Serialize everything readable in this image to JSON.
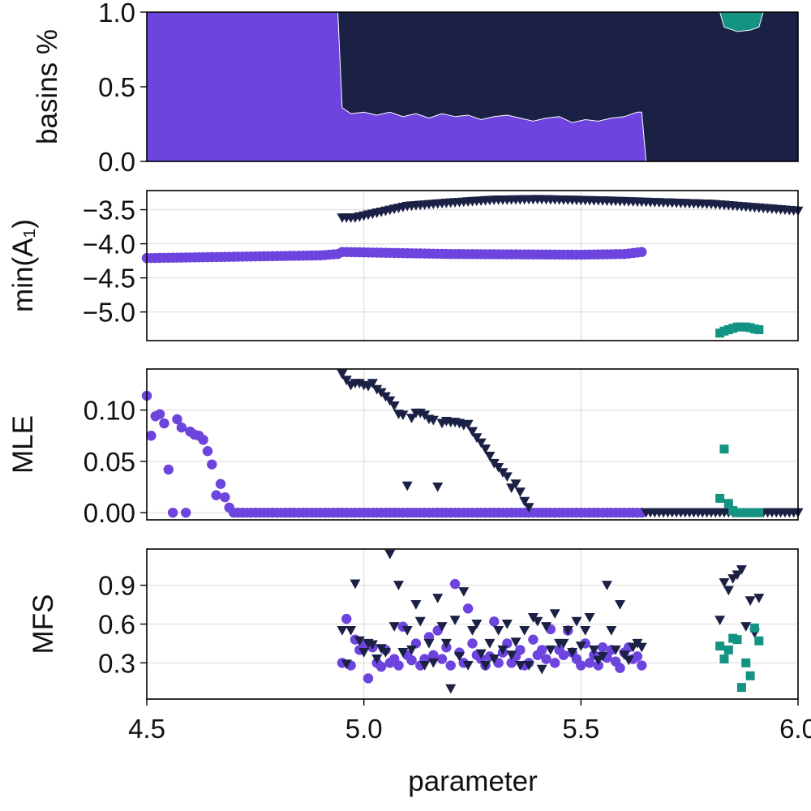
{
  "figure": {
    "xlabel": "parameter",
    "xlim": [
      4.5,
      6.0
    ],
    "xticks": [
      4.5,
      5.0,
      5.5,
      6.0
    ],
    "xtick_labels": [
      "4.5",
      "5.0",
      "5.5",
      "6.0"
    ]
  },
  "colors": {
    "attractor_1": "#6D44DD",
    "attractor_2": "#1B2045",
    "attractor_3": "#139382"
  },
  "chart_data": [
    {
      "type": "area",
      "ylabel": "basins %",
      "ylim": [
        0,
        1
      ],
      "yticks": [
        0.0,
        0.5,
        1.0
      ],
      "ytick_labels": [
        "0.0",
        "0.5",
        "1.0"
      ],
      "grid": true,
      "series": [
        {
          "color_key": "attractor_1",
          "x": [
            4.5,
            4.94,
            4.95,
            4.97,
            5.0,
            5.03,
            5.06,
            5.09,
            5.12,
            5.15,
            5.18,
            5.21,
            5.24,
            5.27,
            5.3,
            5.33,
            5.36,
            5.39,
            5.42,
            5.45,
            5.48,
            5.51,
            5.54,
            5.57,
            5.6,
            5.63,
            5.64,
            5.65
          ],
          "upper": [
            1.0,
            1.0,
            0.36,
            0.32,
            0.33,
            0.31,
            0.33,
            0.3,
            0.32,
            0.29,
            0.32,
            0.3,
            0.31,
            0.28,
            0.3,
            0.31,
            0.29,
            0.27,
            0.29,
            0.3,
            0.26,
            0.28,
            0.27,
            0.29,
            0.3,
            0.33,
            0.33,
            0.0
          ]
        },
        {
          "color_key": "attractor_2",
          "x": [
            4.5,
            5.82,
            5.83,
            5.86,
            5.89,
            5.91,
            5.92,
            6.0
          ],
          "upper": [
            1.0,
            1.0,
            0.9,
            0.87,
            0.88,
            0.9,
            1.0,
            1.0
          ]
        },
        {
          "color_key": "attractor_3",
          "x": [
            5.82,
            5.83,
            5.86,
            5.89,
            5.91,
            5.92
          ],
          "upper": [
            1.0,
            1.0,
            1.0,
            1.0,
            1.0,
            1.0
          ]
        }
      ]
    },
    {
      "type": "scatter",
      "ylabel": "min(A₁)",
      "ylim": [
        -5.42,
        -3.22
      ],
      "yticks": [
        -3.5,
        -4.0,
        -4.5,
        -5.0
      ],
      "ytick_labels": [
        "−3.5",
        "−4.0",
        "−4.5",
        "−5.0"
      ],
      "grid": true,
      "series": [
        {
          "color_key": "attractor_1",
          "marker": "circle",
          "points": "curve",
          "x_range": [
            4.5,
            5.64
          ],
          "step": 0.01,
          "y_anchor_x": [
            4.5,
            4.9,
            4.94,
            4.95,
            5.2,
            5.5,
            5.6,
            5.64
          ],
          "y_anchor_y": [
            -4.21,
            -4.17,
            -4.15,
            -4.12,
            -4.15,
            -4.16,
            -4.15,
            -4.12
          ]
        },
        {
          "color_key": "attractor_2",
          "marker": "triangle-down",
          "points": "curve",
          "x_range": [
            4.95,
            6.0
          ],
          "step": 0.01,
          "y_anchor_x": [
            4.95,
            4.98,
            5.1,
            5.2,
            5.3,
            5.4,
            5.55,
            5.8,
            6.0
          ],
          "y_anchor_y": [
            -3.62,
            -3.62,
            -3.45,
            -3.4,
            -3.36,
            -3.35,
            -3.37,
            -3.42,
            -3.52
          ]
        },
        {
          "color_key": "attractor_3",
          "marker": "square",
          "points": "list",
          "x": [
            5.82,
            5.83,
            5.84,
            5.85,
            5.86,
            5.87,
            5.88,
            5.89,
            5.9,
            5.91
          ],
          "y": [
            -5.31,
            -5.28,
            -5.26,
            -5.24,
            -5.22,
            -5.22,
            -5.22,
            -5.23,
            -5.25,
            -5.26
          ]
        }
      ]
    },
    {
      "type": "scatter",
      "ylabel": "MLE",
      "ylim": [
        -0.007,
        0.14
      ],
      "yticks": [
        0.0,
        0.05,
        0.1
      ],
      "ytick_labels": [
        "0.00",
        "0.05",
        "0.10"
      ],
      "grid": true,
      "series": [
        {
          "color_key": "attractor_1",
          "marker": "circle",
          "points": "list",
          "x": [
            4.5,
            4.51,
            4.52,
            4.53,
            4.54,
            4.55,
            4.56,
            4.57,
            4.58,
            4.59,
            4.6,
            4.61,
            4.62,
            4.63,
            4.64,
            4.65,
            4.66,
            4.67,
            4.68,
            4.69
          ],
          "y": [
            0.114,
            0.075,
            0.094,
            0.096,
            0.087,
            0.042,
            0.0,
            0.091,
            0.083,
            0.0,
            0.079,
            0.076,
            0.075,
            0.071,
            0.06,
            0.047,
            0.017,
            0.028,
            0.015,
            0.005
          ]
        },
        {
          "color_key": "attractor_1",
          "marker": "circle",
          "points": "flat",
          "x_range": [
            4.7,
            5.64
          ],
          "step": 0.01,
          "value": 0.0
        },
        {
          "color_key": "attractor_2",
          "marker": "triangle-down",
          "points": "list",
          "x": [
            4.95,
            4.96,
            4.97,
            4.98,
            4.99,
            5.0,
            5.01,
            5.02,
            5.03,
            5.04,
            5.05,
            5.06,
            5.07,
            5.08,
            5.09,
            5.1,
            5.11,
            5.12,
            5.13,
            5.14,
            5.15,
            5.16,
            5.17,
            5.18,
            5.19,
            5.2,
            5.21,
            5.22,
            5.23,
            5.24,
            5.25,
            5.26,
            5.27,
            5.28,
            5.29,
            5.3,
            5.31,
            5.32,
            5.33,
            5.34,
            5.35,
            5.36,
            5.37,
            5.38
          ],
          "y": [
            0.135,
            0.129,
            0.124,
            0.126,
            0.126,
            0.124,
            0.123,
            0.126,
            0.12,
            0.117,
            0.113,
            0.109,
            0.104,
            0.096,
            0.095,
            0.026,
            0.092,
            0.097,
            0.097,
            0.095,
            0.091,
            0.09,
            0.025,
            0.087,
            0.089,
            0.088,
            0.088,
            0.087,
            0.085,
            0.086,
            0.079,
            0.073,
            0.068,
            0.062,
            0.055,
            0.048,
            0.044,
            0.039,
            0.035,
            0.024,
            0.028,
            0.02,
            0.011,
            0.005
          ]
        },
        {
          "color_key": "attractor_2",
          "marker": "triangle-down",
          "points": "flat",
          "x_range": [
            5.65,
            6.0
          ],
          "step": 0.01,
          "value": 0.0
        },
        {
          "color_key": "attractor_3",
          "marker": "square",
          "points": "list",
          "x": [
            5.82,
            5.83,
            5.84,
            5.85,
            5.86,
            5.87,
            5.88,
            5.89,
            5.9,
            5.91
          ],
          "y": [
            0.014,
            0.062,
            0.009,
            0.002,
            0.0,
            0.0,
            0.0,
            0.0,
            0.0,
            0.0
          ]
        }
      ]
    },
    {
      "type": "scatter",
      "ylabel": "MFS",
      "ylim": [
        0.02,
        1.18
      ],
      "yticks": [
        0.3,
        0.6,
        0.9
      ],
      "ytick_labels": [
        "0.3",
        "0.6",
        "0.9"
      ],
      "grid": true,
      "series": [
        {
          "color_key": "attractor_1",
          "marker": "circle",
          "points": "list",
          "x": [
            4.95,
            4.96,
            4.97,
            4.98,
            4.99,
            5.0,
            5.01,
            5.02,
            5.03,
            5.04,
            5.05,
            5.06,
            5.07,
            5.08,
            5.09,
            5.1,
            5.11,
            5.12,
            5.13,
            5.14,
            5.15,
            5.16,
            5.17,
            5.18,
            5.19,
            5.2,
            5.21,
            5.22,
            5.23,
            5.24,
            5.25,
            5.26,
            5.27,
            5.28,
            5.29,
            5.3,
            5.31,
            5.32,
            5.33,
            5.34,
            5.35,
            5.36,
            5.37,
            5.38,
            5.39,
            5.4,
            5.41,
            5.42,
            5.43,
            5.44,
            5.45,
            5.46,
            5.47,
            5.48,
            5.49,
            5.5,
            5.51,
            5.52,
            5.53,
            5.54,
            5.55,
            5.56,
            5.57,
            5.58,
            5.59,
            5.6,
            5.61,
            5.62,
            5.63,
            5.64
          ],
          "y": [
            0.3,
            0.64,
            0.28,
            0.48,
            0.4,
            0.44,
            0.18,
            0.42,
            0.3,
            0.27,
            0.4,
            0.3,
            0.33,
            0.28,
            0.58,
            0.36,
            0.32,
            0.45,
            0.28,
            0.33,
            0.5,
            0.36,
            0.55,
            0.33,
            0.42,
            0.28,
            0.91,
            0.38,
            0.3,
            0.72,
            0.45,
            0.36,
            0.33,
            0.28,
            0.35,
            0.62,
            0.3,
            0.38,
            0.45,
            0.3,
            0.35,
            0.4,
            0.28,
            0.3,
            0.48,
            0.36,
            0.4,
            0.33,
            0.56,
            0.3,
            0.4,
            0.36,
            0.55,
            0.38,
            0.33,
            0.28,
            0.45,
            0.3,
            0.36,
            0.28,
            0.42,
            0.34,
            0.4,
            0.31,
            0.26,
            0.38,
            0.42,
            0.33,
            0.35,
            0.28
          ]
        },
        {
          "color_key": "attractor_2",
          "marker": "triangle-down",
          "points": "list",
          "x": [
            4.95,
            4.96,
            4.97,
            4.98,
            4.99,
            5.0,
            5.01,
            5.02,
            5.03,
            5.04,
            5.05,
            5.06,
            5.07,
            5.08,
            5.09,
            5.1,
            5.11,
            5.12,
            5.13,
            5.14,
            5.15,
            5.16,
            5.17,
            5.18,
            5.19,
            5.2,
            5.21,
            5.22,
            5.23,
            5.24,
            5.25,
            5.26,
            5.27,
            5.28,
            5.29,
            5.3,
            5.31,
            5.32,
            5.33,
            5.34,
            5.35,
            5.36,
            5.37,
            5.38,
            5.39,
            5.4,
            5.41,
            5.42,
            5.43,
            5.44,
            5.45,
            5.46,
            5.47,
            5.48,
            5.49,
            5.5,
            5.51,
            5.52,
            5.53,
            5.54,
            5.55,
            5.56,
            5.57,
            5.58,
            5.59,
            5.6,
            5.61,
            5.62,
            5.63,
            5.64
          ],
          "y": [
            0.55,
            0.29,
            0.55,
            0.91,
            0.47,
            0.38,
            0.45,
            0.44,
            0.33,
            0.41,
            0.38,
            1.14,
            0.58,
            0.9,
            0.38,
            0.55,
            0.4,
            0.75,
            0.62,
            0.28,
            0.45,
            0.3,
            0.8,
            0.58,
            0.45,
            0.1,
            0.63,
            0.35,
            0.85,
            0.28,
            0.55,
            0.6,
            0.37,
            0.28,
            0.45,
            0.33,
            0.55,
            0.4,
            0.6,
            0.36,
            0.46,
            0.28,
            0.55,
            0.28,
            0.65,
            0.62,
            0.25,
            0.58,
            0.4,
            0.68,
            0.45,
            0.45,
            0.55,
            0.38,
            0.62,
            0.43,
            0.55,
            0.65,
            0.4,
            0.32,
            0.35,
            0.9,
            0.55,
            0.4,
            0.75,
            0.36,
            0.32,
            0.42,
            0.45,
            0.42
          ]
        },
        {
          "color_key": "attractor_2",
          "marker": "triangle-down",
          "points": "list",
          "x": [
            5.82,
            5.83,
            5.84,
            5.85,
            5.86,
            5.87,
            5.88,
            5.89,
            5.9,
            5.91
          ],
          "y": [
            0.63,
            0.92,
            0.86,
            0.95,
            0.98,
            1.02,
            0.58,
            0.78,
            0.53,
            0.8
          ]
        },
        {
          "color_key": "attractor_3",
          "marker": "square",
          "points": "list",
          "x": [
            5.82,
            5.83,
            5.84,
            5.85,
            5.86,
            5.87,
            5.88,
            5.89,
            5.9,
            5.91
          ],
          "y": [
            0.43,
            0.33,
            0.4,
            0.49,
            0.48,
            0.11,
            0.3,
            0.2,
            0.57,
            0.47
          ]
        }
      ]
    }
  ]
}
